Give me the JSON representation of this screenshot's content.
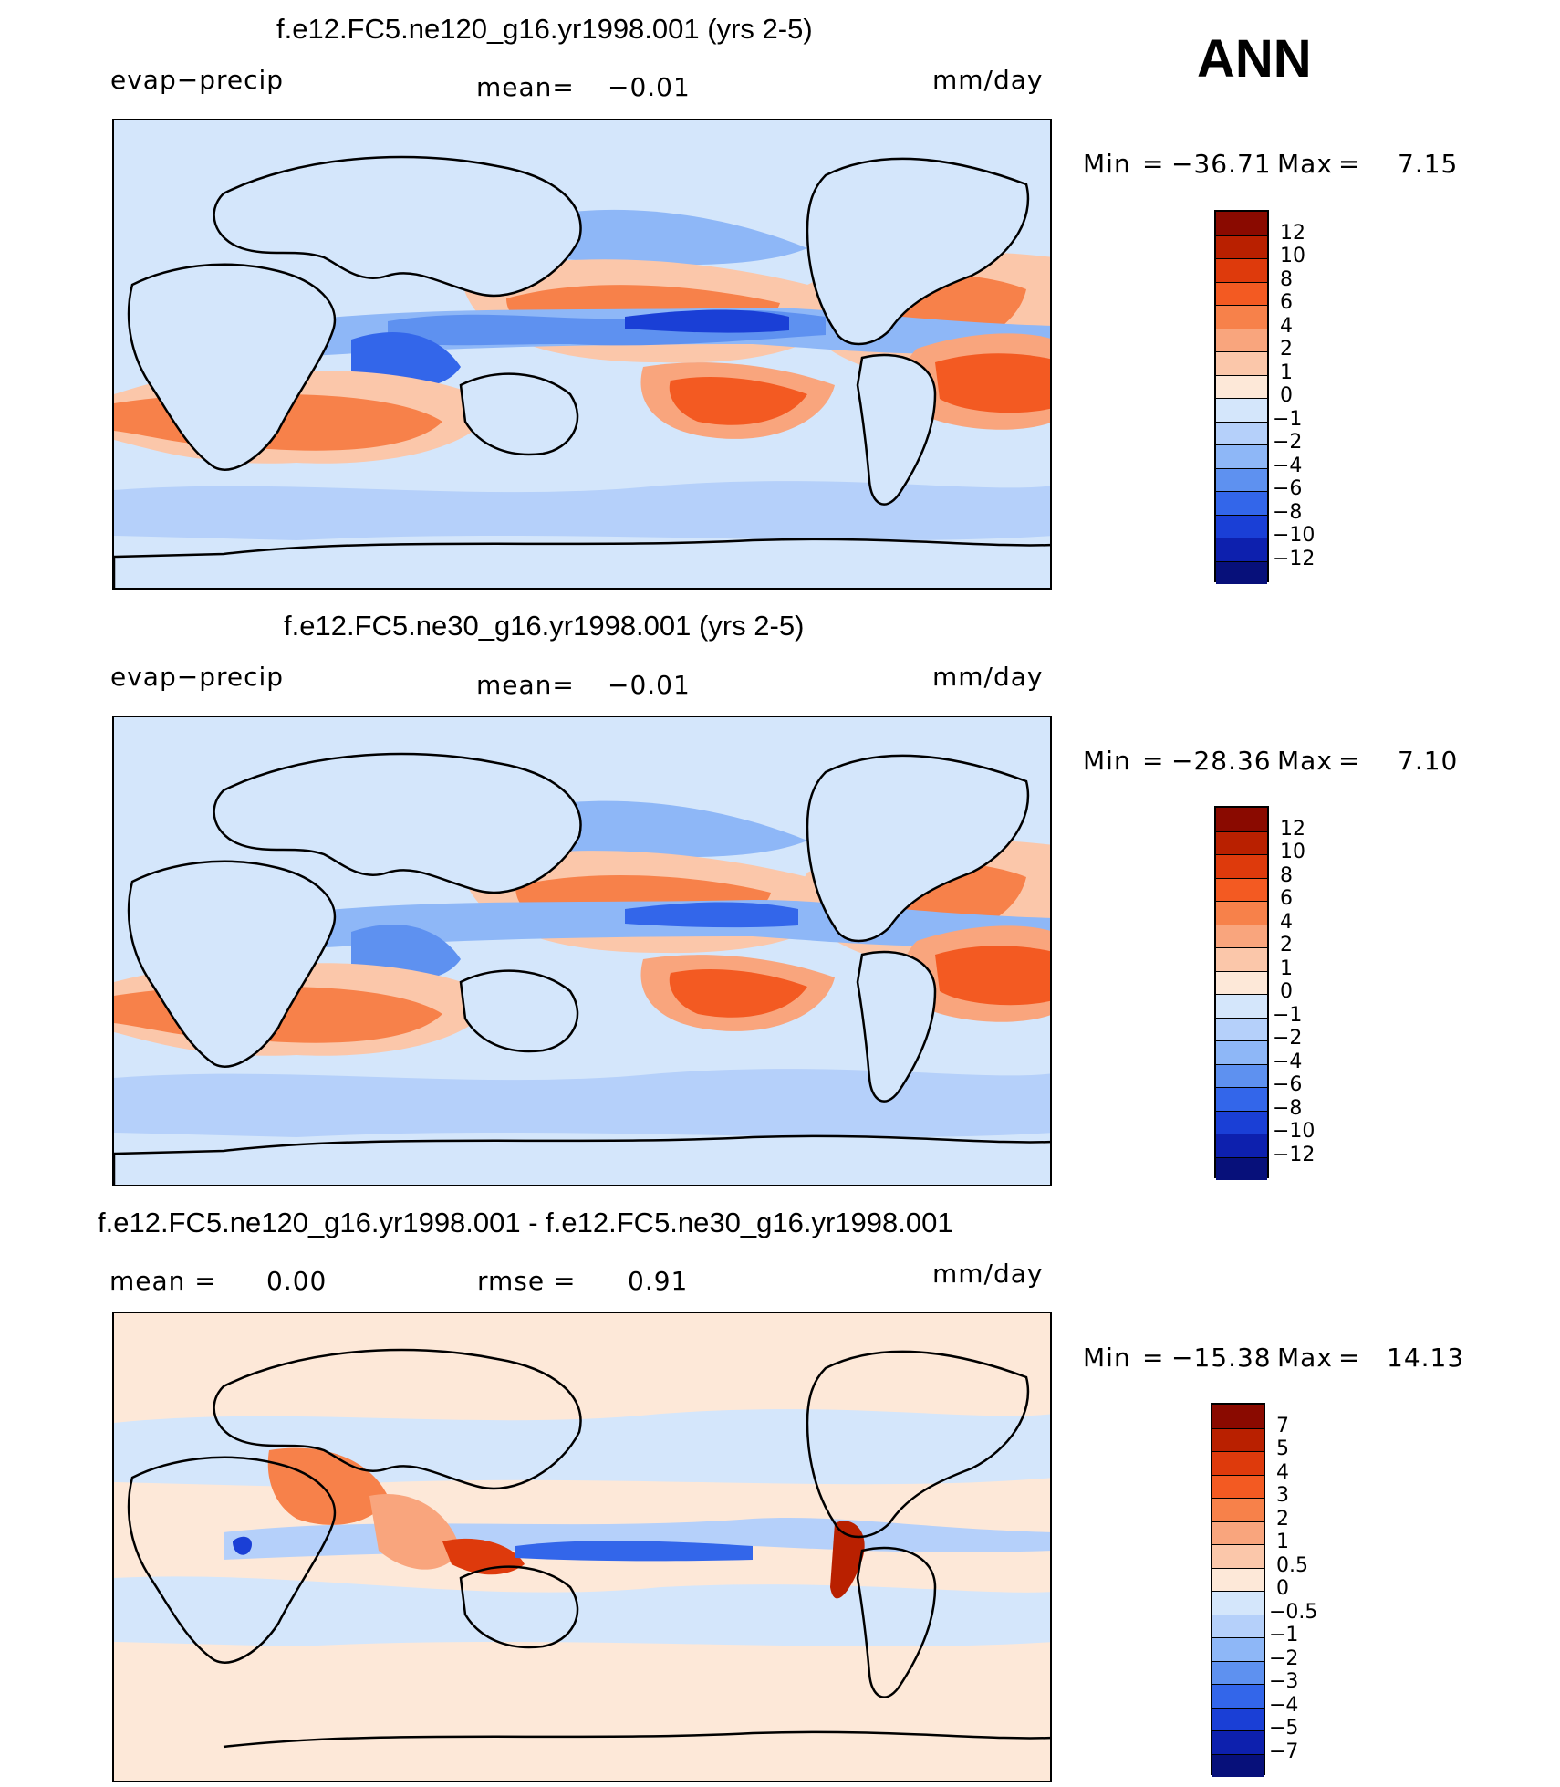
{
  "season": "ANN",
  "panels": [
    {
      "title": "f.e12.FC5.ne120_g16.yr1998.001 (yrs 2-5)",
      "left_label": "evap−precip",
      "stat_label": "mean=",
      "stat_value": "−0.01",
      "stat2_label": "",
      "stat2_value": "",
      "units": "mm/day",
      "min_label": "Min",
      "min_value": "−36.71",
      "max_label": "Max",
      "max_value": "7.15",
      "colorbar": {
        "levels": [
          "12",
          "10",
          "8",
          "6",
          "4",
          "2",
          "1",
          "0",
          "−1",
          "−2",
          "−4",
          "−6",
          "−8",
          "−10",
          "−12"
        ],
        "colors": [
          "#8a0a00",
          "#b92000",
          "#de3a0c",
          "#f35a22",
          "#f7814a",
          "#f9a57d",
          "#fbc7aa",
          "#fde8d8",
          "#d4e6fb",
          "#b5d0fa",
          "#8eb7f7",
          "#5e91f0",
          "#3366ea",
          "#1a3fd6",
          "#0d20ae",
          "#07107a"
        ]
      }
    },
    {
      "title": "f.e12.FC5.ne30_g16.yr1998.001 (yrs 2-5)",
      "left_label": "evap−precip",
      "stat_label": "mean=",
      "stat_value": "−0.01",
      "stat2_label": "",
      "stat2_value": "",
      "units": "mm/day",
      "min_label": "Min",
      "min_value": "−28.36",
      "max_label": "Max",
      "max_value": "7.10",
      "colorbar": {
        "levels": [
          "12",
          "10",
          "8",
          "6",
          "4",
          "2",
          "1",
          "0",
          "−1",
          "−2",
          "−4",
          "−6",
          "−8",
          "−10",
          "−12"
        ],
        "colors": [
          "#8a0a00",
          "#b92000",
          "#de3a0c",
          "#f35a22",
          "#f7814a",
          "#f9a57d",
          "#fbc7aa",
          "#fde8d8",
          "#d4e6fb",
          "#b5d0fa",
          "#8eb7f7",
          "#5e91f0",
          "#3366ea",
          "#1a3fd6",
          "#0d20ae",
          "#07107a"
        ]
      }
    },
    {
      "title": "f.e12.FC5.ne120_g16.yr1998.001 - f.e12.FC5.ne30_g16.yr1998.001",
      "left_label": "mean =",
      "stat_label": "0.00",
      "stat_value": "",
      "stat2_label": "rmse =",
      "stat2_value": "0.91",
      "units": "mm/day",
      "min_label": "Min",
      "min_value": "−15.38",
      "max_label": "Max",
      "max_value": "14.13",
      "colorbar": {
        "levels": [
          "7",
          "5",
          "4",
          "3",
          "2",
          "1",
          "0.5",
          "0",
          "−0.5",
          "−1",
          "−2",
          "−3",
          "−4",
          "−5",
          "−7"
        ],
        "colors": [
          "#8a0a00",
          "#b92000",
          "#de3a0c",
          "#f35a22",
          "#f7814a",
          "#f9a57d",
          "#fbc7aa",
          "#fde8d8",
          "#d4e6fb",
          "#b5d0fa",
          "#8eb7f7",
          "#5e91f0",
          "#3366ea",
          "#1a3fd6",
          "#0d20ae",
          "#07107a"
        ]
      }
    }
  ]
}
